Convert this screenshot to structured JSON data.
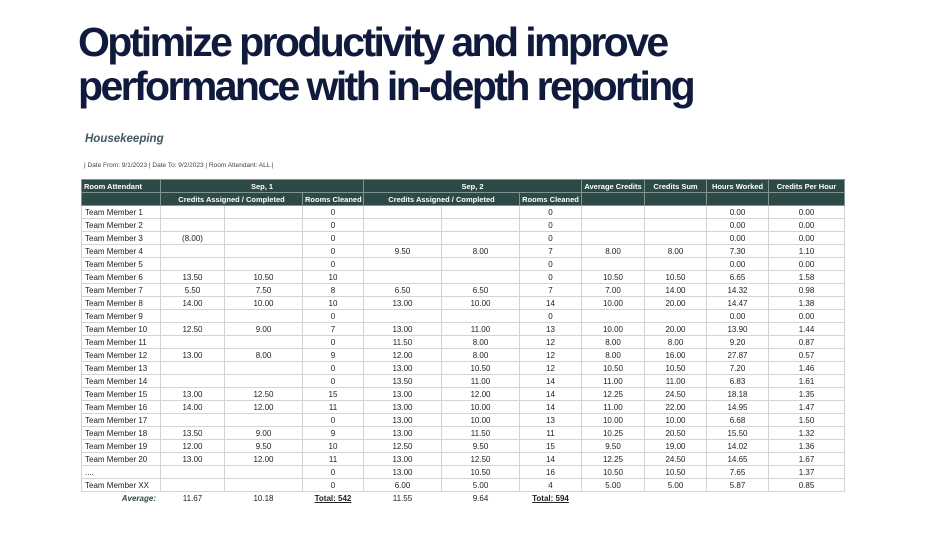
{
  "headline": {
    "line1": "Optimize productivity and improve",
    "line2": "performance with in-depth reporting"
  },
  "report": {
    "title": "Housekeeping",
    "filter": "| Date From: 9/1/2023 | Date To: 9/2/2023 | Room Attendant: ALL |",
    "headers": {
      "attendant": "Room Attendant",
      "day1": "Sep, 1",
      "day2": "Sep, 2",
      "avg_credits": "Average Credits",
      "credits_sum": "Credits Sum",
      "hours_worked": "Hours Worked",
      "credits_per_hour": "Credits Per Hour",
      "credits_assigned_completed": "Credits Assigned / Completed",
      "rooms_cleaned": "Rooms Cleaned"
    },
    "rows": [
      [
        "Team Member 1",
        "",
        "",
        "0",
        "",
        "",
        "0",
        "",
        "",
        "0.00",
        "0.00"
      ],
      [
        "Team Member 2",
        "",
        "",
        "0",
        "",
        "",
        "0",
        "",
        "",
        "0.00",
        "0.00"
      ],
      [
        "Team Member 3",
        "(8.00)",
        "",
        "0",
        "",
        "",
        "0",
        "",
        "",
        "0.00",
        "0.00"
      ],
      [
        "Team Member 4",
        "",
        "",
        "0",
        "9.50",
        "8.00",
        "7",
        "8.00",
        "8.00",
        "7.30",
        "1.10"
      ],
      [
        "Team Member 5",
        "",
        "",
        "0",
        "",
        "",
        "0",
        "",
        "",
        "0.00",
        "0.00"
      ],
      [
        "Team Member 6",
        "13.50",
        "10.50",
        "10",
        "",
        "",
        "0",
        "10.50",
        "10.50",
        "6.65",
        "1.58"
      ],
      [
        "Team Member 7",
        "5.50",
        "7.50",
        "8",
        "6.50",
        "6.50",
        "7",
        "7.00",
        "14.00",
        "14.32",
        "0.98"
      ],
      [
        "Team Member 8",
        "14.00",
        "10.00",
        "10",
        "13.00",
        "10.00",
        "14",
        "10.00",
        "20.00",
        "14.47",
        "1.38"
      ],
      [
        "Team Member 9",
        "",
        "",
        "0",
        "",
        "",
        "0",
        "",
        "",
        "0.00",
        "0.00"
      ],
      [
        "Team Member 10",
        "12.50",
        "9.00",
        "7",
        "13.00",
        "11.00",
        "13",
        "10.00",
        "20.00",
        "13.90",
        "1.44"
      ],
      [
        "Team Member 11",
        "",
        "",
        "0",
        "11.50",
        "8.00",
        "12",
        "8.00",
        "8.00",
        "9.20",
        "0.87"
      ],
      [
        "Team Member 12",
        "13.00",
        "8.00",
        "9",
        "12.00",
        "8.00",
        "12",
        "8.00",
        "16.00",
        "27.87",
        "0.57"
      ],
      [
        "Team Member 13",
        "",
        "",
        "0",
        "13.00",
        "10.50",
        "12",
        "10.50",
        "10.50",
        "7.20",
        "1.46"
      ],
      [
        "Team Member 14",
        "",
        "",
        "0",
        "13.50",
        "11.00",
        "14",
        "11.00",
        "11.00",
        "6.83",
        "1.61"
      ],
      [
        "Team Member 15",
        "13.00",
        "12.50",
        "15",
        "13.00",
        "12.00",
        "14",
        "12.25",
        "24.50",
        "18.18",
        "1.35"
      ],
      [
        "Team Member 16",
        "14.00",
        "12.00",
        "11",
        "13.00",
        "10.00",
        "14",
        "11.00",
        "22.00",
        "14.95",
        "1.47"
      ],
      [
        "Team Member 17",
        "",
        "",
        "0",
        "13.00",
        "10.00",
        "13",
        "10.00",
        "10.00",
        "6.68",
        "1.50"
      ],
      [
        "Team Member 18",
        "13.50",
        "9.00",
        "9",
        "13.00",
        "11.50",
        "11",
        "10.25",
        "20.50",
        "15.50",
        "1.32"
      ],
      [
        "Team Member 19",
        "12.00",
        "9.50",
        "10",
        "12.50",
        "9.50",
        "15",
        "9.50",
        "19.00",
        "14.02",
        "1.36"
      ],
      [
        "Team Member 20",
        "13.00",
        "12.00",
        "11",
        "13.00",
        "12.50",
        "14",
        "12.25",
        "24.50",
        "14.65",
        "1.67"
      ],
      [
        "....",
        "",
        "",
        "0",
        "13.00",
        "10.50",
        "16",
        "10.50",
        "10.50",
        "7.65",
        "1.37"
      ],
      [
        "Team Member XX",
        "",
        "",
        "0",
        "6.00",
        "5.00",
        "4",
        "5.00",
        "5.00",
        "5.87",
        "0.85"
      ]
    ],
    "average": {
      "label": "Average:",
      "day1_assigned": "11.67",
      "day1_completed": "10.18",
      "day1_total": "Total: 542",
      "day2_assigned": "11.55",
      "day2_completed": "9.64",
      "day2_total": "Total: 594"
    },
    "colors": {
      "header_bg": "#2d4a48",
      "headline": "#0f1a3c",
      "title": "#3f5863"
    }
  }
}
